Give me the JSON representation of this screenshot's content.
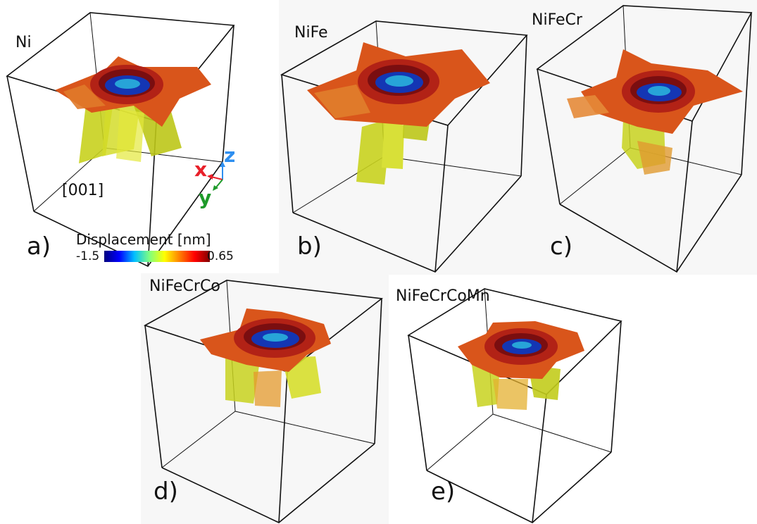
{
  "panels": [
    {
      "id": "a",
      "title": "Ni",
      "letter": "a)"
    },
    {
      "id": "b",
      "title": "NiFe",
      "letter": "b)"
    },
    {
      "id": "c",
      "title": "NiFeCr",
      "letter": "c)"
    },
    {
      "id": "d",
      "title": "NiFeCrCo",
      "letter": "d)"
    },
    {
      "id": "e",
      "title": "NiFeCrCoMn",
      "letter": "e)"
    }
  ],
  "direction_label": "[001]",
  "axes": {
    "x": "x",
    "y": "y",
    "z": "z"
  },
  "axis_colors": {
    "x": "#e8202a",
    "y": "#1e9a2a",
    "z": "#2e8ff0"
  },
  "colorbar": {
    "title": "Displacement [nm]",
    "min_label": "-1.5",
    "max_label": "0.65",
    "colormap": "jet"
  },
  "colors": {
    "dislocation": "#c8d21e",
    "surface": "#d9551b",
    "indent_center": "#1436b4",
    "box_edge": "#111111"
  }
}
